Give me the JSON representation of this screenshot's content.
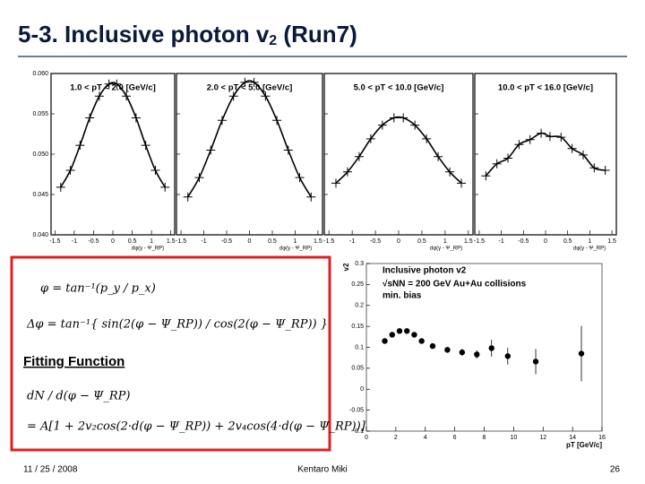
{
  "slide": {
    "title": {
      "main": "5-3. Inclusive photon v",
      "sub": "2",
      "end": " (Run7)"
    },
    "date": "11 / 25 / 2008",
    "author": "Kentaro Miki",
    "page": "26"
  },
  "formula_box": {
    "label": "Fitting Function",
    "formulas": [
      "φ = tan⁻¹(p_y / p_x)",
      "Δφ = tan⁻¹{ sin(2(φ − Ψ_RP)) / cos(2(φ − Ψ_RP)) }",
      "dN / d(φ − Ψ_RP)",
      "= A[1 + 2v₂cos(2·d(φ − Ψ_RP)) + 2v₄cos(4·d(φ − Ψ_RP))]"
    ]
  },
  "chart_data": [
    {
      "type": "scatter",
      "fit": true,
      "title": "1.0 < pT < 2.0 [GeV/c]",
      "xlabel": "dφ(γ - Ψ_RP)",
      "x": [
        -1.35,
        -1.1,
        -0.85,
        -0.6,
        -0.35,
        -0.1,
        0.1,
        0.35,
        0.6,
        0.85,
        1.1,
        1.35
      ],
      "values": [
        0.0459,
        0.048,
        0.0511,
        0.0545,
        0.0572,
        0.0587,
        0.0587,
        0.0572,
        0.0545,
        0.0511,
        0.048,
        0.0459
      ],
      "xlim": [
        -1.6,
        1.6
      ],
      "ylim": [
        0.04,
        0.06
      ],
      "xticks": [
        -1.5,
        -1,
        -0.5,
        0,
        0.5,
        1,
        1.5
      ],
      "yticks": [
        {
          "value": 0.04,
          "label": "0.040"
        },
        0.045,
        {
          "value": 0.05,
          "label": "0.050"
        },
        0.055,
        {
          "value": 0.06,
          "label": "0.060"
        }
      ]
    },
    {
      "type": "scatter",
      "fit": true,
      "title": "2.0 < pT < 5.0 [GeV/c]",
      "xlabel": "dφ(γ - Ψ_RP)",
      "x": [
        -1.35,
        -1.1,
        -0.85,
        -0.6,
        -0.35,
        -0.1,
        0.1,
        0.35,
        0.6,
        0.85,
        1.1,
        1.35
      ],
      "values": [
        0.0447,
        0.0471,
        0.0505,
        0.0542,
        0.0572,
        0.0589,
        0.0589,
        0.0572,
        0.0542,
        0.0505,
        0.0471,
        0.0447
      ],
      "xlim": [
        -1.6,
        1.6
      ],
      "ylim": [
        0.04,
        0.06
      ],
      "xticks": [
        -1.5,
        -1,
        -0.5,
        0,
        0.5,
        1,
        1.5
      ],
      "yticks": [
        0.04,
        0.045,
        0.05,
        0.055,
        0.06
      ]
    },
    {
      "type": "scatter",
      "fit": true,
      "title": "5.0 < pT < 10.0 [GeV/c]",
      "xlabel": "dφ(γ - Ψ_RP)",
      "x": [
        -1.35,
        -1.1,
        -0.85,
        -0.6,
        -0.35,
        -0.1,
        0.1,
        0.35,
        0.6,
        0.85,
        1.1,
        1.35
      ],
      "values": [
        0.0464,
        0.0478,
        0.0497,
        0.0519,
        0.0536,
        0.0545,
        0.0545,
        0.0536,
        0.0519,
        0.0497,
        0.0478,
        0.0464
      ],
      "xlim": [
        -1.6,
        1.6
      ],
      "ylim": [
        0.04,
        0.06
      ],
      "xticks": [
        -1.5,
        -1,
        -0.5,
        0,
        0.5,
        1,
        1.5
      ],
      "yticks": [
        0.04,
        0.045,
        0.05,
        0.055,
        0.06
      ]
    },
    {
      "type": "scatter",
      "fit": true,
      "title": "10.0 < pT < 16.0 [GeV/c]",
      "xlabel": "dφ(γ - Ψ_RP)",
      "x": [
        -1.35,
        -1.1,
        -0.85,
        -0.6,
        -0.35,
        -0.1,
        0.1,
        0.35,
        0.6,
        0.85,
        1.1,
        1.35
      ],
      "values": [
        0.0473,
        0.0488,
        0.0495,
        0.0512,
        0.0518,
        0.0526,
        0.0522,
        0.0521,
        0.0507,
        0.0499,
        0.0483,
        0.048
      ],
      "xlim": [
        -1.6,
        1.6
      ],
      "ylim": [
        0.04,
        0.06
      ],
      "xticks": [
        -1.5,
        -1,
        -0.5,
        0,
        0.5,
        1,
        1.5
      ],
      "yticks": [
        0.04,
        0.045,
        0.05,
        0.055,
        0.06
      ]
    },
    {
      "type": "scatter",
      "fit": false,
      "title": "Inclusive photon v2",
      "subtitle": "√sNN = 200 GeV Au+Au collisions",
      "note": "min. bias",
      "ylabel": "v2",
      "xlabel": "pT [GeV/c]",
      "x": [
        1.25,
        1.75,
        2.25,
        2.75,
        3.25,
        3.75,
        4.5,
        5.5,
        6.5,
        7.5,
        8.5,
        9.6,
        11.5,
        14.6
      ],
      "values": [
        0.115,
        0.13,
        0.139,
        0.139,
        0.13,
        0.115,
        0.103,
        0.094,
        0.088,
        0.083,
        0.098,
        0.079,
        0.066,
        0.085
      ],
      "errors": [
        0.004,
        0.004,
        0.004,
        0.004,
        0.005,
        0.005,
        0.006,
        0.007,
        0.008,
        0.01,
        0.02,
        0.02,
        0.03,
        0.066
      ],
      "xlim": [
        0,
        16
      ],
      "ylim": [
        -0.1,
        0.3
      ],
      "xticks": [
        0,
        2,
        4,
        6,
        8,
        10,
        12,
        14,
        16
      ],
      "yticks": [
        -0.1,
        -0.05,
        0,
        0.05,
        0.1,
        0.15,
        0.2,
        0.25,
        0.3
      ]
    }
  ]
}
